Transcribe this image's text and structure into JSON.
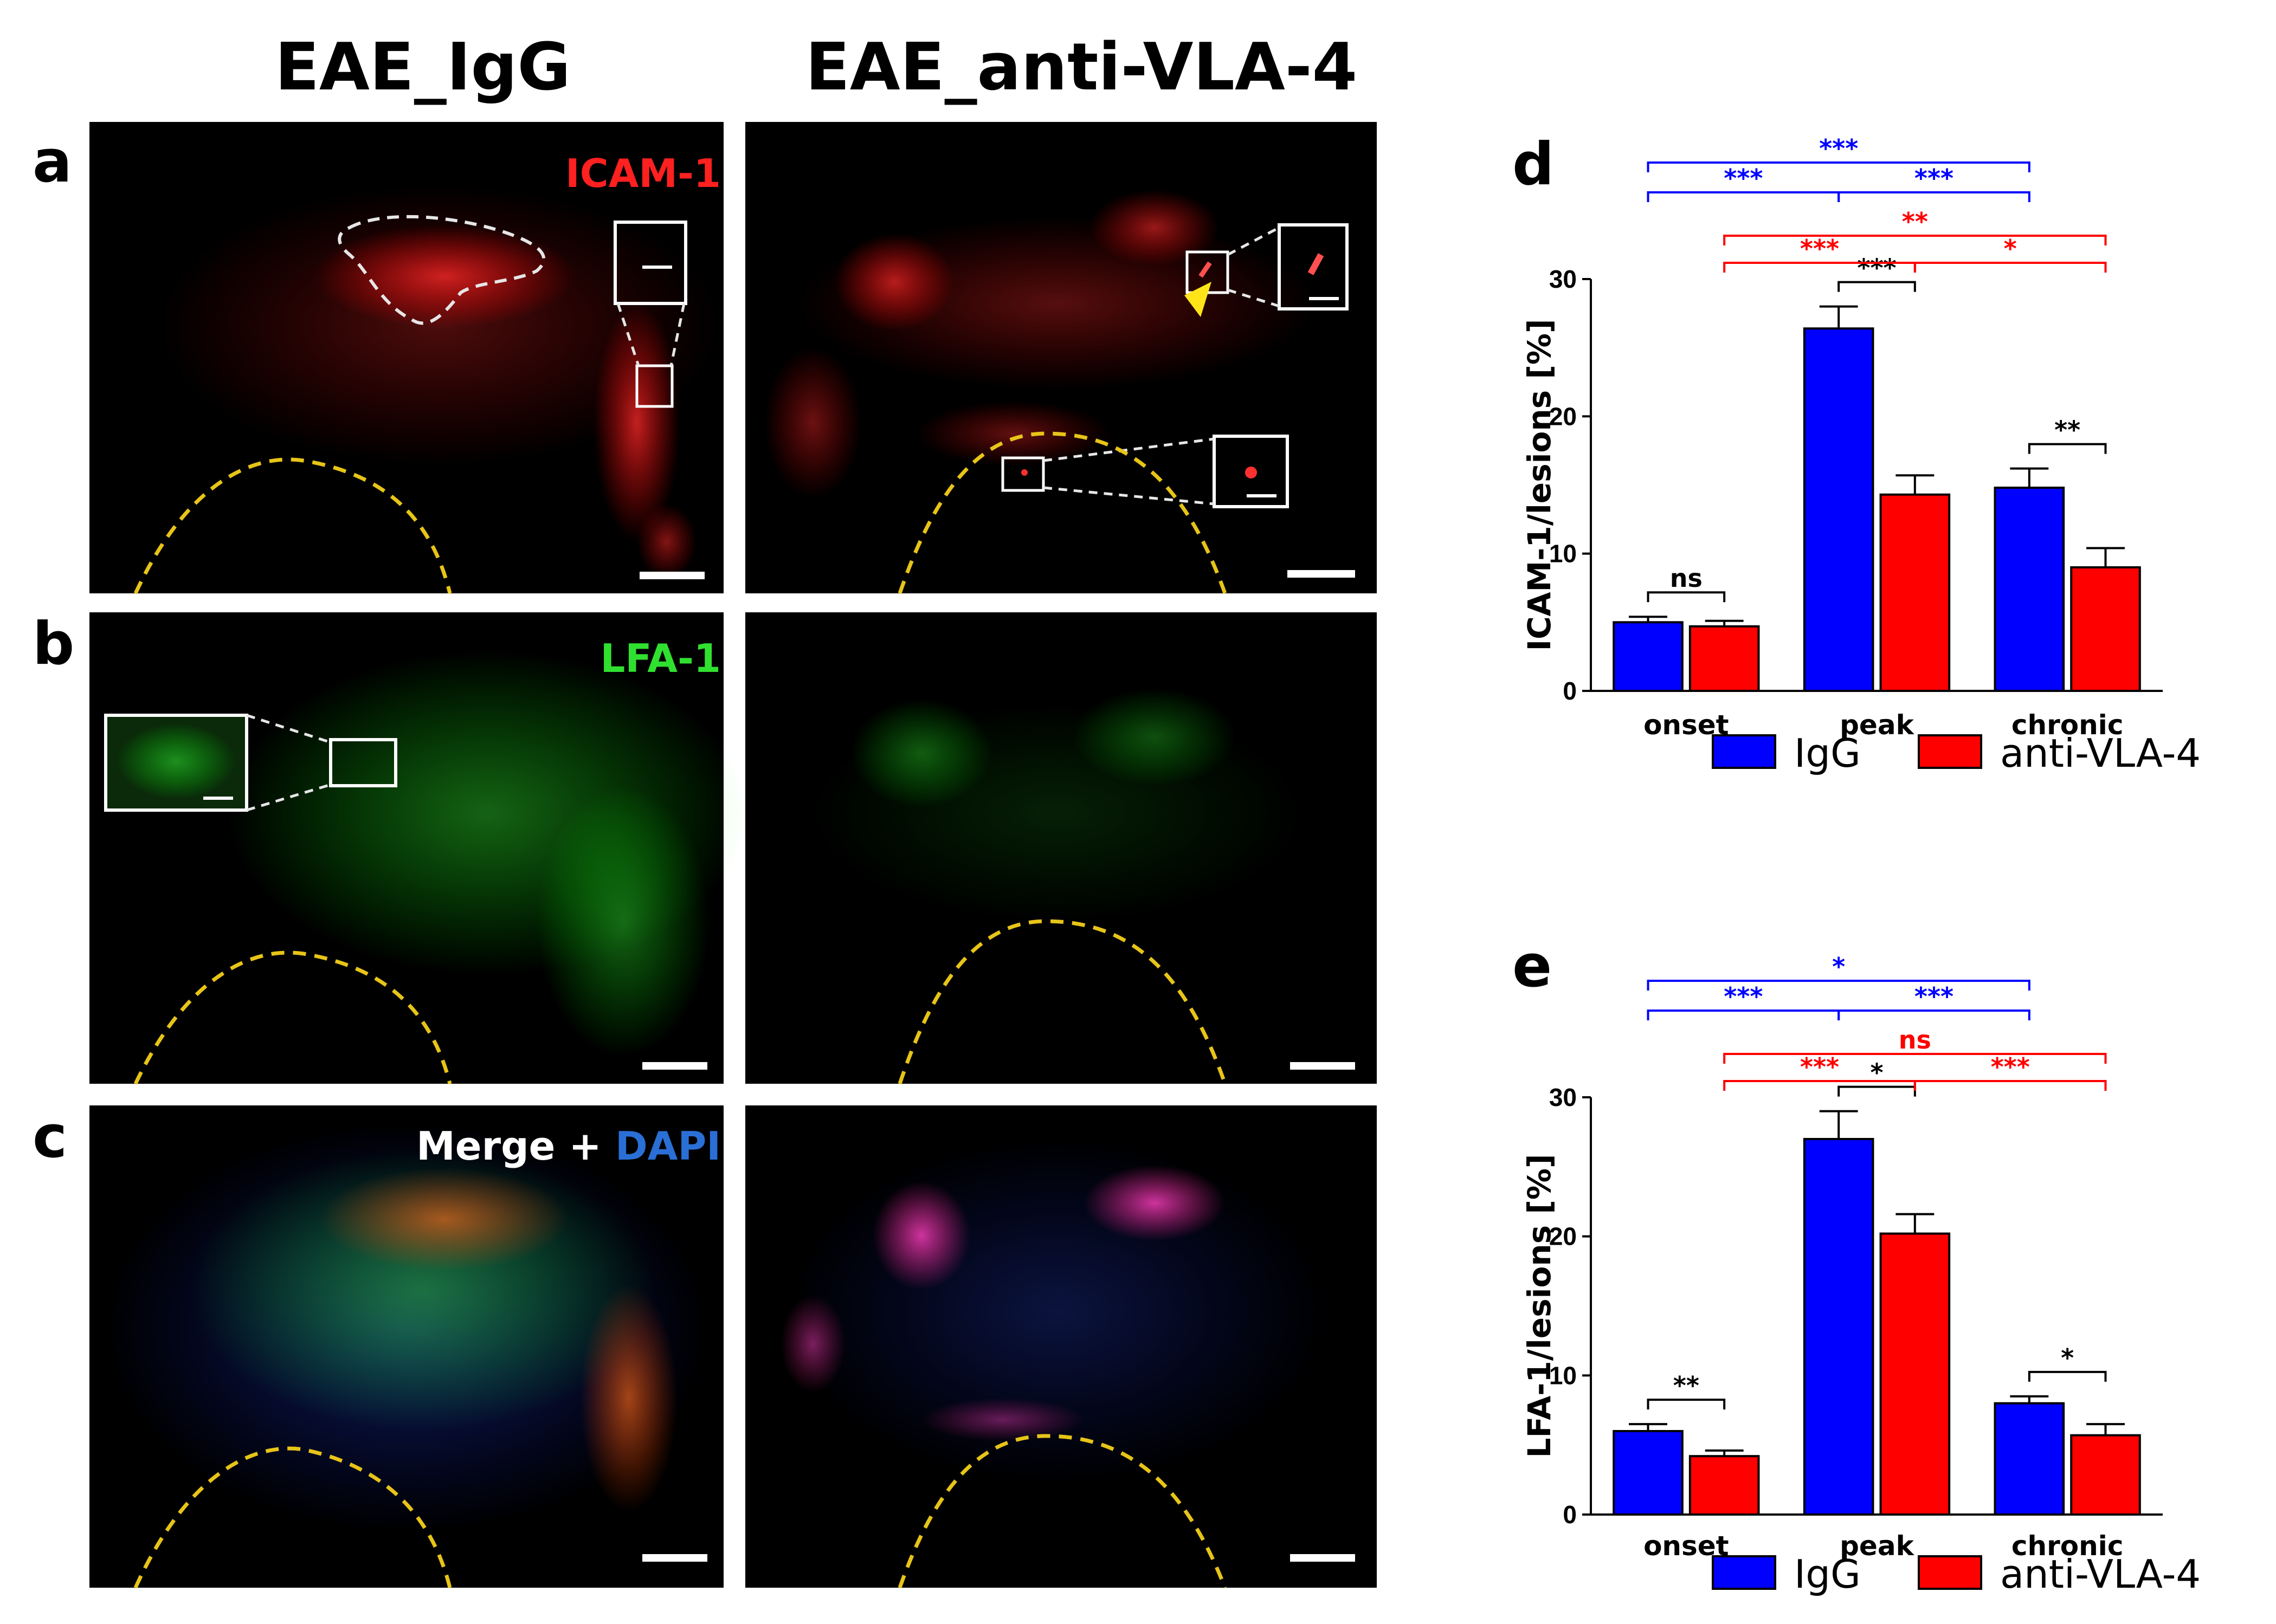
{
  "panels": {
    "col_titles": [
      "EAE_IgG",
      "EAE_anti-VLA-4"
    ],
    "row_labels": [
      "a",
      "b",
      "c"
    ],
    "channel_labels": {
      "a": "ICAM-1",
      "b": "LFA-1",
      "c_prefix": "Merge + ",
      "c_suffix": "DAPI"
    },
    "channel_colors": {
      "ICAM-1": "#ff2020",
      "LFA-1": "#30e030",
      "Merge": "#ffffff",
      "DAPI": "#2a6fd6"
    }
  },
  "colors": {
    "IgG": "#0000ff",
    "anti-VLA-4": "#ff0000"
  },
  "chart_data": [
    {
      "panel": "d",
      "type": "bar",
      "categories": [
        "onset",
        "peak",
        "chronic"
      ],
      "series": [
        {
          "name": "IgG",
          "values": [
            5.0,
            26.4,
            14.8
          ],
          "errors": [
            0.4,
            1.6,
            1.4
          ]
        },
        {
          "name": "anti-VLA-4",
          "values": [
            4.7,
            14.3,
            9.0
          ],
          "errors": [
            0.4,
            1.4,
            1.4
          ]
        }
      ],
      "ylabel": "ICAM-1/lesions [%]",
      "ylim": [
        0,
        30
      ],
      "yticks": [
        0,
        10,
        20,
        30
      ],
      "legend": "bottom",
      "significance": [
        {
          "label": "ns",
          "a": [
            "onset",
            0
          ],
          "b": [
            "onset",
            1
          ],
          "color": "#000000"
        },
        {
          "label": "***",
          "a": [
            "peak",
            0
          ],
          "b": [
            "peak",
            1
          ],
          "color": "#000000"
        },
        {
          "label": "**",
          "a": [
            "chronic",
            0
          ],
          "b": [
            "chronic",
            1
          ],
          "color": "#000000"
        },
        {
          "label": "***",
          "a": [
            "onset",
            0
          ],
          "b": [
            "peak",
            0
          ],
          "color": "#0000ff"
        },
        {
          "label": "***",
          "a": [
            "peak",
            0
          ],
          "b": [
            "chronic",
            0
          ],
          "color": "#0000ff"
        },
        {
          "label": "***",
          "a": [
            "onset",
            0
          ],
          "b": [
            "chronic",
            0
          ],
          "color": "#0000ff"
        },
        {
          "label": "***",
          "a": [
            "onset",
            1
          ],
          "b": [
            "peak",
            1
          ],
          "color": "#ff0000"
        },
        {
          "label": "*",
          "a": [
            "peak",
            1
          ],
          "b": [
            "chronic",
            1
          ],
          "color": "#ff0000"
        },
        {
          "label": "**",
          "a": [
            "onset",
            1
          ],
          "b": [
            "chronic",
            1
          ],
          "color": "#ff0000"
        }
      ]
    },
    {
      "panel": "e",
      "type": "bar",
      "categories": [
        "onset",
        "peak",
        "chronic"
      ],
      "series": [
        {
          "name": "IgG",
          "values": [
            6.0,
            27.0,
            8.0
          ],
          "errors": [
            0.5,
            2.0,
            0.5
          ]
        },
        {
          "name": "anti-VLA-4",
          "values": [
            4.2,
            20.2,
            5.7
          ],
          "errors": [
            0.4,
            1.4,
            0.8
          ]
        }
      ],
      "ylabel": "LFA-1/lesions [%]",
      "ylim": [
        0,
        30
      ],
      "yticks": [
        0,
        10,
        20,
        30
      ],
      "legend": "bottom",
      "significance": [
        {
          "label": "**",
          "a": [
            "onset",
            0
          ],
          "b": [
            "onset",
            1
          ],
          "color": "#000000"
        },
        {
          "label": "*",
          "a": [
            "peak",
            0
          ],
          "b": [
            "peak",
            1
          ],
          "color": "#000000"
        },
        {
          "label": "*",
          "a": [
            "chronic",
            0
          ],
          "b": [
            "chronic",
            1
          ],
          "color": "#000000"
        },
        {
          "label": "***",
          "a": [
            "onset",
            0
          ],
          "b": [
            "peak",
            0
          ],
          "color": "#0000ff"
        },
        {
          "label": "***",
          "a": [
            "peak",
            0
          ],
          "b": [
            "chronic",
            0
          ],
          "color": "#0000ff"
        },
        {
          "label": "*",
          "a": [
            "onset",
            0
          ],
          "b": [
            "chronic",
            0
          ],
          "color": "#0000ff"
        },
        {
          "label": "***",
          "a": [
            "onset",
            1
          ],
          "b": [
            "peak",
            1
          ],
          "color": "#ff0000"
        },
        {
          "label": "***",
          "a": [
            "peak",
            1
          ],
          "b": [
            "chronic",
            1
          ],
          "color": "#ff0000"
        },
        {
          "label": "ns",
          "a": [
            "onset",
            1
          ],
          "b": [
            "chronic",
            1
          ],
          "color": "#ff0000"
        }
      ]
    }
  ],
  "chart_labels": [
    "d",
    "e"
  ]
}
